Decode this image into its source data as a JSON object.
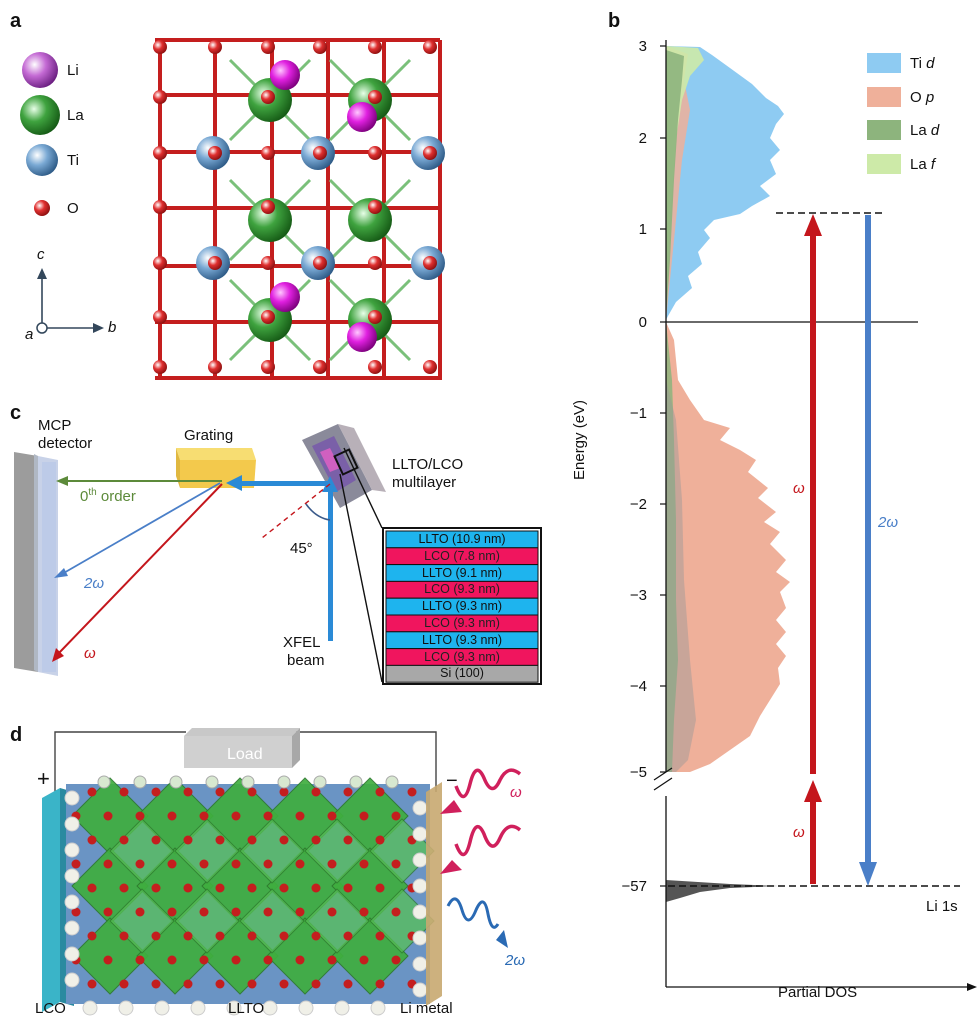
{
  "panels": {
    "a": "a",
    "b": "b",
    "c": "c",
    "d": "d"
  },
  "panel_a": {
    "legend": [
      {
        "label": "Li",
        "color": "#b44fc8"
      },
      {
        "label": "La",
        "color": "#3a9a3a"
      },
      {
        "label": "Ti",
        "color": "#6aa0cc"
      },
      {
        "label": "O",
        "color": "#d42a2a"
      }
    ],
    "axes": {
      "c": "c",
      "a": "a",
      "b": "b"
    }
  },
  "panel_b": {
    "ylabel": "Energy (eV)",
    "xlabel": "Partial DOS",
    "legend": [
      {
        "label": "Ti",
        "sub": "d",
        "color": "#8ecbf2"
      },
      {
        "label": "O",
        "sub": "p",
        "color": "#efb09a"
      },
      {
        "label": "La",
        "sub": "d",
        "color": "#8db47d"
      },
      {
        "label": "La",
        "sub": "f",
        "color": "#cdeaa8"
      }
    ],
    "yticks": [
      "3",
      "2",
      "1",
      "0",
      "−1",
      "−2",
      "−3",
      "−4",
      "−5",
      "−57"
    ],
    "omega": "ω",
    "two_omega": "2ω",
    "li1s": "Li 1s"
  },
  "panel_c": {
    "detector": [
      "MCP",
      "detector"
    ],
    "grating": "Grating",
    "sample": [
      "LLTO/LCO",
      "multilayer"
    ],
    "zeroth": "0",
    "zeroth_sup": "th",
    "zeroth_rest": " order",
    "two_omega": "2ω",
    "omega": "ω",
    "angle": "45°",
    "beam": [
      "XFEL",
      "beam"
    ],
    "stack": [
      {
        "label": "LLTO (10.9 nm)",
        "color": "#1eb4ee"
      },
      {
        "label": "LCO (7.8 nm)",
        "color": "#f0155e"
      },
      {
        "label": "LLTO (9.1 nm)",
        "color": "#1eb4ee"
      },
      {
        "label": "LCO (9.3 nm)",
        "color": "#f0155e"
      },
      {
        "label": "LLTO (9.3 nm)",
        "color": "#1eb4ee"
      },
      {
        "label": "LCO (9.3 nm)",
        "color": "#f0155e"
      },
      {
        "label": "LLTO (9.3 nm)",
        "color": "#1eb4ee"
      },
      {
        "label": "LCO (9.3 nm)",
        "color": "#f0155e"
      },
      {
        "label": "Si (100)",
        "color": "#a8a8a8"
      }
    ]
  },
  "panel_d": {
    "load": "Load",
    "plus": "+",
    "minus": "−",
    "omega": "ω",
    "two_omega": "2ω",
    "bottom_labels": [
      "LCO",
      "LLTO",
      "Li metal"
    ]
  }
}
